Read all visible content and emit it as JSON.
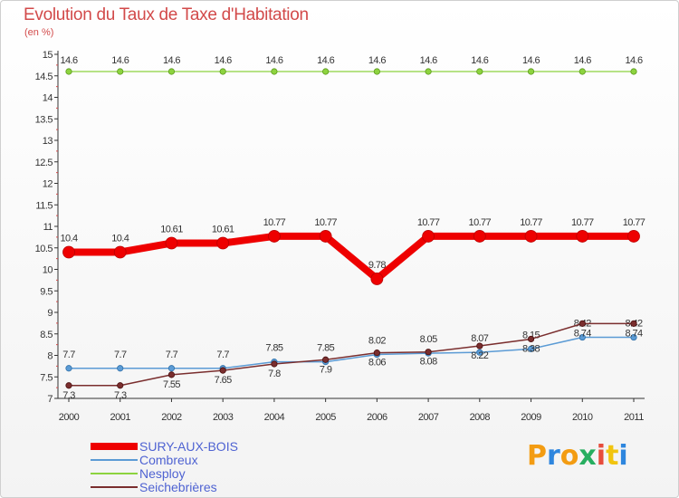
{
  "title": "Evolution du Taux de Taxe d'Habitation",
  "subtitle": "(en %)",
  "logo": {
    "letters": [
      "P",
      "r",
      "o",
      "x",
      "i",
      "t",
      "i"
    ],
    "colors": [
      "#f39c12",
      "#2e86de",
      "#f39c12",
      "#27ae60",
      "#e74c3c",
      "#f1c40f",
      "#2e86de"
    ]
  },
  "chart_data": {
    "type": "line",
    "x": [
      "2000",
      "2001",
      "2002",
      "2003",
      "2004",
      "2005",
      "2006",
      "2007",
      "2008",
      "2009",
      "2010",
      "2011"
    ],
    "ylim": [
      7,
      15
    ],
    "yticks": [
      "7",
      "7.5",
      "8",
      "8.5",
      "9",
      "9.5",
      "10",
      "10.5",
      "11",
      "11.5",
      "12",
      "12.5",
      "13",
      "13.5",
      "14",
      "14.5",
      "15"
    ],
    "grid": false,
    "legend_position": "bottom-left",
    "series": [
      {
        "name": "SURY-AUX-BOIS",
        "color": "#ee0000",
        "values": [
          10.4,
          10.4,
          10.61,
          10.61,
          10.77,
          10.77,
          9.78,
          10.77,
          10.77,
          10.77,
          10.77,
          10.77
        ],
        "labels": [
          "10.4",
          "10.4",
          "10.61",
          "10.61",
          "10.77",
          "10.77",
          "9.78",
          "10.77",
          "10.77",
          "10.77",
          "10.77",
          "10.77"
        ]
      },
      {
        "name": "Combreux",
        "color": "#5b9bd5",
        "values": [
          7.7,
          7.7,
          7.7,
          7.7,
          7.85,
          7.85,
          8.02,
          8.05,
          8.07,
          8.15,
          8.42,
          8.42
        ],
        "labels": [
          "7.7",
          "7.7",
          "7.7",
          "7.7",
          "7.85",
          "7.85",
          "8.02",
          "8.05",
          "8.07",
          "8.15",
          "8.42",
          "8.42"
        ]
      },
      {
        "name": "Nesploy",
        "color": "#8dd33f",
        "values": [
          14.6,
          14.6,
          14.6,
          14.6,
          14.6,
          14.6,
          14.6,
          14.6,
          14.6,
          14.6,
          14.6,
          14.6
        ],
        "labels": [
          "14.6",
          "14.6",
          "14.6",
          "14.6",
          "14.6",
          "14.6",
          "14.6",
          "14.6",
          "14.6",
          "14.6",
          "14.6",
          "14.6"
        ]
      },
      {
        "name": "Seichebrières",
        "color": "#7a2e2e",
        "values": [
          7.3,
          7.3,
          7.55,
          7.65,
          7.8,
          7.9,
          8.06,
          8.08,
          8.22,
          8.38,
          8.74,
          8.74
        ],
        "labels": [
          "7.3",
          "7.3",
          "7.55",
          "7.65",
          "7.8",
          "7.9",
          "8.06",
          "8.08",
          "8.22",
          "8.38",
          "8.74",
          "8.74"
        ]
      }
    ]
  }
}
